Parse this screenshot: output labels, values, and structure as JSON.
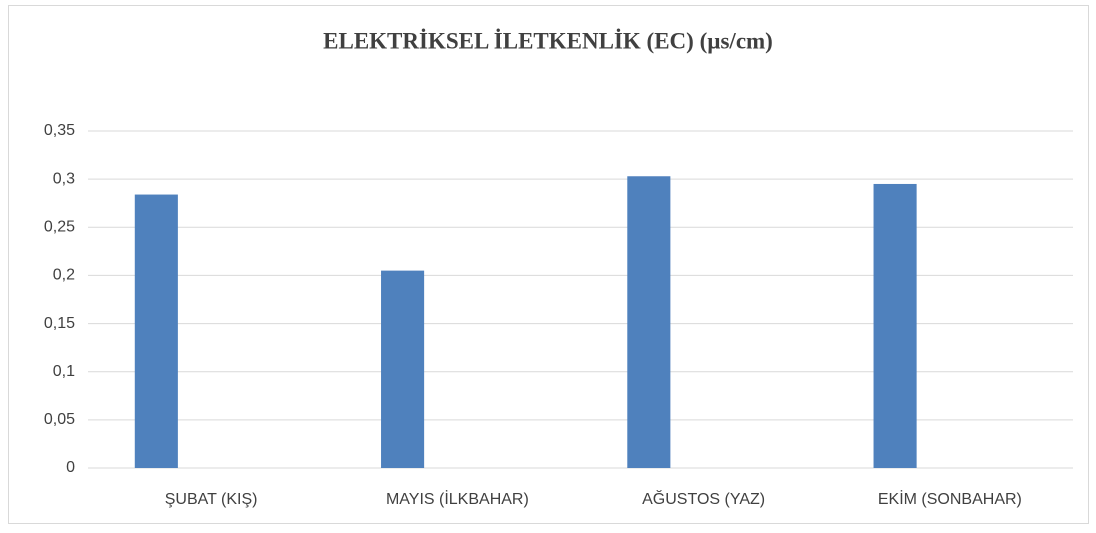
{
  "chart_data": {
    "type": "bar",
    "title": "ELEKTRİKSEL İLETKENLİK (EC) (µs/cm)",
    "categories": [
      "ŞUBAT (KIŞ)",
      "MAYIS (İLKBAHAR)",
      "AĞUSTOS (YAZ)",
      "EKİM (SONBAHAR)"
    ],
    "values": [
      0.284,
      0.205,
      0.303,
      0.295
    ],
    "color": "#4f81bd",
    "ylim": [
      0,
      0.35
    ],
    "yticks": [
      0,
      {
        "value": 0.05,
        "label": "0,05"
      },
      {
        "value": 0.1,
        "label": "0,1"
      },
      {
        "value": 0.15,
        "label": "0,15"
      },
      {
        "value": 0.2,
        "label": "0,2"
      },
      {
        "value": 0.25,
        "label": "0,25"
      },
      {
        "value": 0.3,
        "label": "0,3"
      },
      {
        "value": 0.35,
        "label": "0,35"
      }
    ],
    "grid": true
  }
}
